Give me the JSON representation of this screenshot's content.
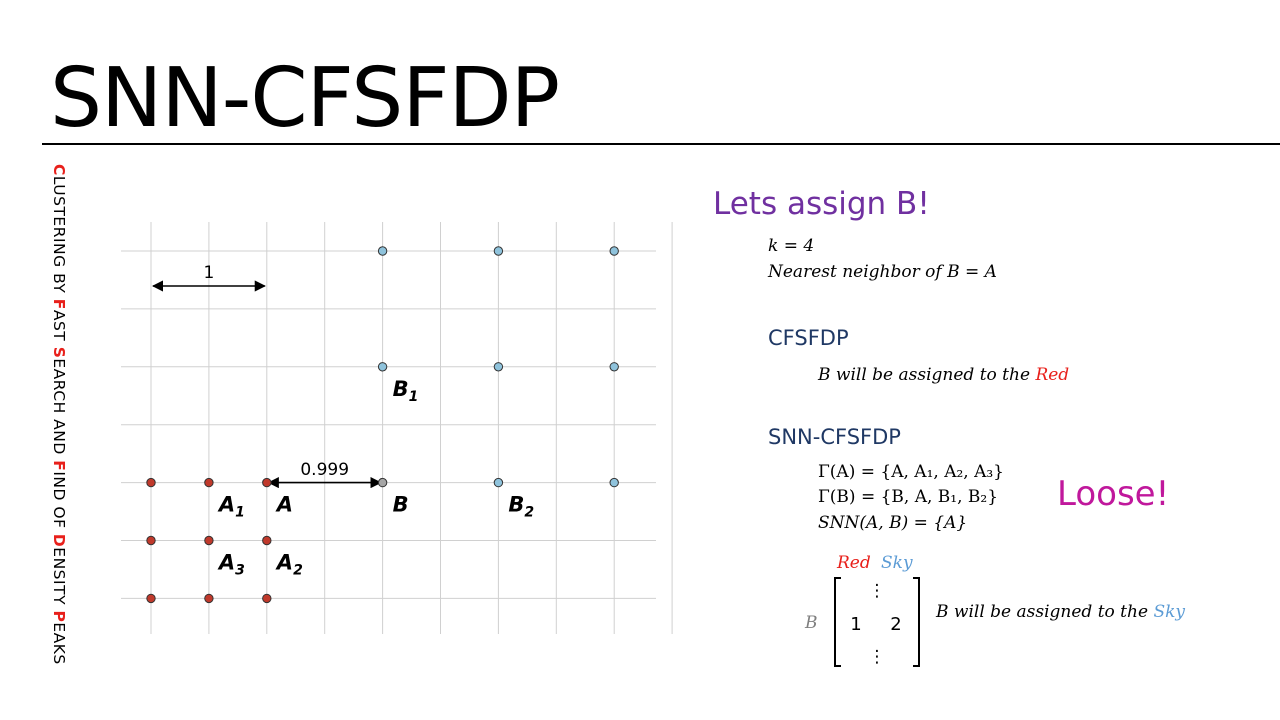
{
  "slide": {
    "title": "SNN-CFSFDP",
    "side_title_parts": [
      {
        "text": "C",
        "highlight": true
      },
      {
        "text": "LUSTERING BY ",
        "highlight": false
      },
      {
        "text": "F",
        "highlight": true
      },
      {
        "text": "AST ",
        "highlight": false
      },
      {
        "text": "S",
        "highlight": true
      },
      {
        "text": "EARCH AND ",
        "highlight": false
      },
      {
        "text": "F",
        "highlight": true
      },
      {
        "text": "IND OF ",
        "highlight": false
      },
      {
        "text": "D",
        "highlight": true
      },
      {
        "text": "ENSITY ",
        "highlight": false
      },
      {
        "text": "P",
        "highlight": true
      },
      {
        "text": "EAKS",
        "highlight": false
      }
    ]
  },
  "colors": {
    "red_point": "#c0392b",
    "sky_point": "#8fc3dc",
    "gray_point": "#a6a6a6",
    "highlight": "#e8201b",
    "sky_text": "#5b9bd5",
    "lets": "#7030a0",
    "header": "#1f3864",
    "loose": "#c0189c"
  },
  "diagram": {
    "grid": {
      "cols": 10,
      "rows": 7
    },
    "points": [
      {
        "col": 0,
        "row": 4,
        "cluster": "red"
      },
      {
        "col": 1,
        "row": 4,
        "cluster": "red"
      },
      {
        "col": 2,
        "row": 4,
        "cluster": "red"
      },
      {
        "col": 0,
        "row": 5,
        "cluster": "red"
      },
      {
        "col": 1,
        "row": 5,
        "cluster": "red"
      },
      {
        "col": 2,
        "row": 5,
        "cluster": "red"
      },
      {
        "col": 0,
        "row": 6,
        "cluster": "red"
      },
      {
        "col": 1,
        "row": 6,
        "cluster": "red"
      },
      {
        "col": 2,
        "row": 6,
        "cluster": "red"
      },
      {
        "col": 4,
        "row": 4,
        "cluster": "gray"
      },
      {
        "col": 4,
        "row": 0,
        "cluster": "sky"
      },
      {
        "col": 6,
        "row": 0,
        "cluster": "sky"
      },
      {
        "col": 8,
        "row": 0,
        "cluster": "sky"
      },
      {
        "col": 4,
        "row": 2,
        "cluster": "sky"
      },
      {
        "col": 6,
        "row": 2,
        "cluster": "sky"
      },
      {
        "col": 8,
        "row": 2,
        "cluster": "sky"
      },
      {
        "col": 6,
        "row": 4,
        "cluster": "sky"
      },
      {
        "col": 8,
        "row": 4,
        "cluster": "sky"
      }
    ],
    "labels": [
      {
        "base": "A",
        "sub": "1",
        "col": 1,
        "row": 4
      },
      {
        "base": "A",
        "sub": "",
        "col": 2,
        "row": 4
      },
      {
        "base": "B",
        "sub": "",
        "col": 4,
        "row": 4
      },
      {
        "base": "B",
        "sub": "2",
        "col": 6,
        "row": 4
      },
      {
        "base": "B",
        "sub": "1",
        "col": 4,
        "row": 2
      },
      {
        "base": "A",
        "sub": "3",
        "col": 1,
        "row": 5
      },
      {
        "base": "A",
        "sub": "2",
        "col": 2,
        "row": 5
      }
    ],
    "dist_unit": {
      "label": "1",
      "from_col": 0,
      "to_col": 2,
      "row": 0
    },
    "dist_ab": {
      "label": "0.999",
      "from_col": 2,
      "to_col": 4,
      "row": 4
    }
  },
  "panel": {
    "heading": "Lets assign B!",
    "k_line": "k = 4",
    "nn_line": "Nearest neighbor of B = A",
    "cfsfdp": {
      "heading": "CFSFDP",
      "text": "B will be assigned to the ",
      "target": "Red"
    },
    "snn": {
      "heading": "SNN-CFSFDP",
      "gamma_a": "Γ(A) = {A, A₁, A₂, A₃}",
      "gamma_b": "Γ(B) = {B, A, B₁, B₂}",
      "snn_ab": "SNN(A, B) = {A}",
      "loose": "Loose!",
      "matrix": {
        "col_red": "Red",
        "col_sky": "Sky",
        "row_label": "B",
        "vdots": "⋮",
        "val_red": "1",
        "val_sky": "2"
      },
      "text": "B will be assigned to the ",
      "target": "Sky"
    }
  }
}
